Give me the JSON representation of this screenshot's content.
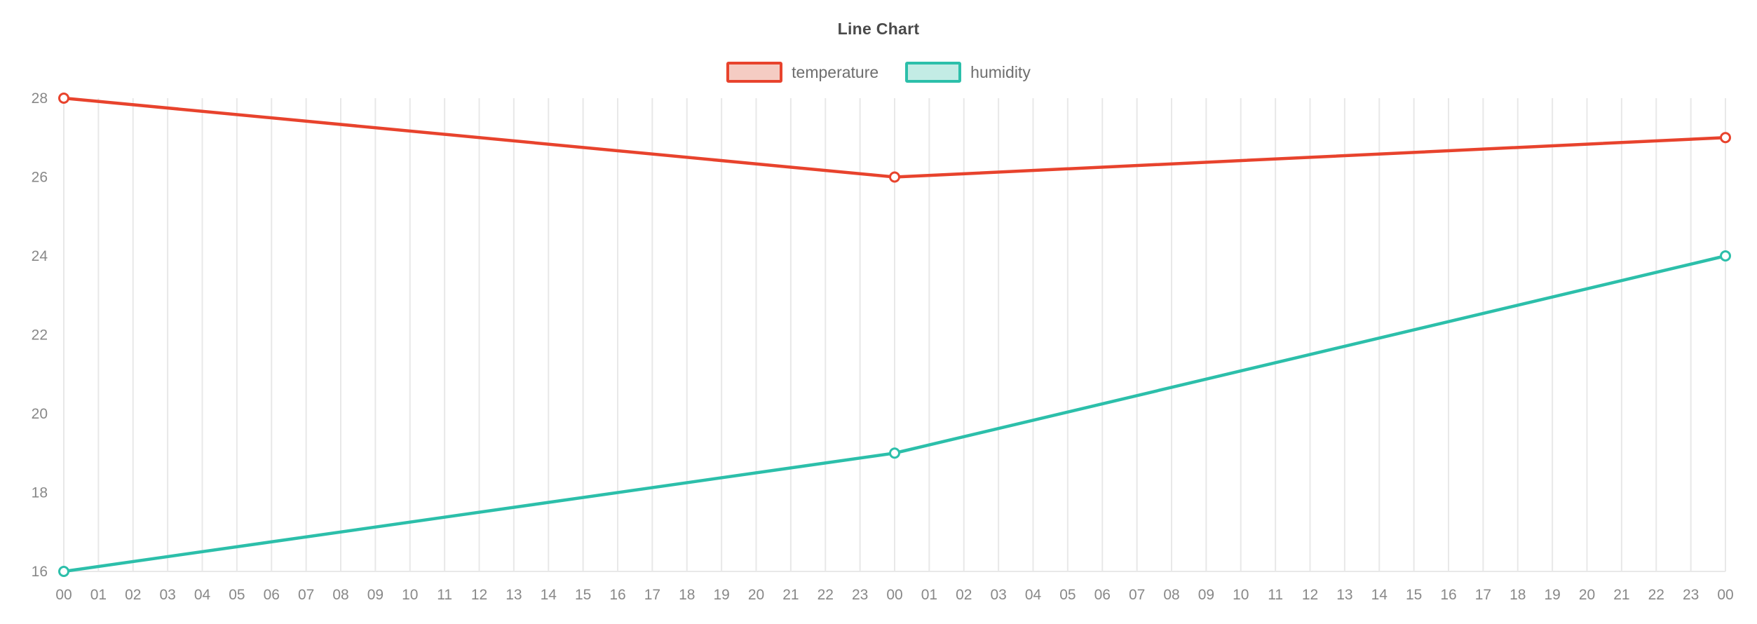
{
  "chart_data": {
    "type": "line",
    "title": "Line Chart",
    "categories": [
      "00",
      "01",
      "02",
      "03",
      "04",
      "05",
      "06",
      "07",
      "08",
      "09",
      "10",
      "11",
      "12",
      "13",
      "14",
      "15",
      "16",
      "17",
      "18",
      "19",
      "20",
      "21",
      "22",
      "23",
      "00",
      "01",
      "02",
      "03",
      "04",
      "05",
      "06",
      "07",
      "08",
      "09",
      "10",
      "11",
      "12",
      "13",
      "14",
      "15",
      "16",
      "17",
      "18",
      "19",
      "20",
      "21",
      "22",
      "23",
      "00"
    ],
    "yticks": [
      16,
      18,
      20,
      22,
      24,
      26,
      28
    ],
    "ylim": [
      16,
      28
    ],
    "grid": "vertical",
    "grid_color": "#e8e8e8",
    "axis_label_color": "#888888",
    "legend_position": "top",
    "series": [
      {
        "name": "temperature",
        "color": "#e8432d",
        "legend_fill": "#f5ccc3",
        "x_indices": [
          0,
          24,
          48
        ],
        "values": [
          28,
          26,
          27
        ]
      },
      {
        "name": "humidity",
        "color": "#2cbfaa",
        "legend_fill": "#c3ece5",
        "x_indices": [
          0,
          24,
          48
        ],
        "values": [
          16,
          19,
          24
        ]
      }
    ],
    "xlabel": "",
    "ylabel": ""
  }
}
